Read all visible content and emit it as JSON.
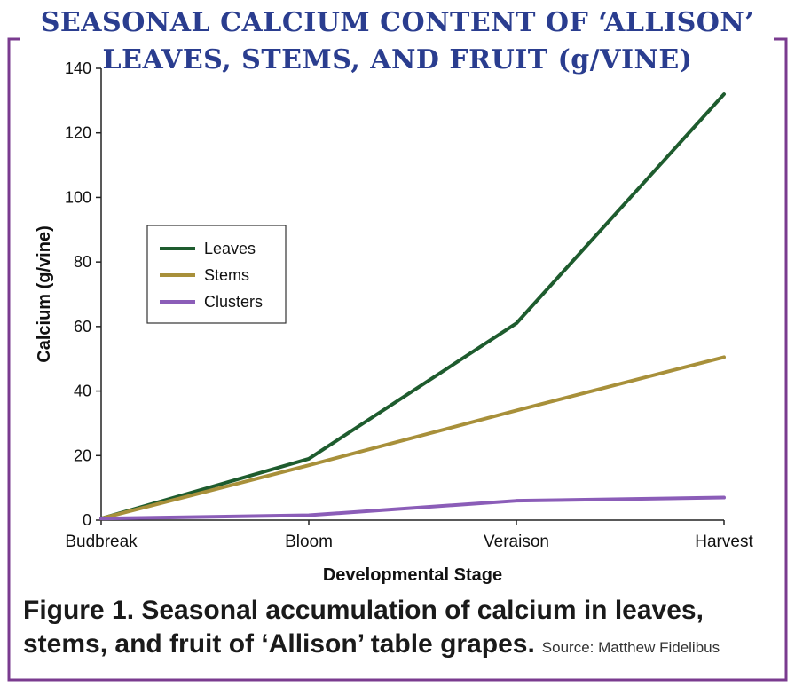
{
  "header": {
    "title_line_1": "SEASONAL CALCIUM CONTENT OF ‘ALLISON’",
    "title_line_2": "LEAVES, STEMS, AND FRUIT (g/VINE)"
  },
  "caption": {
    "text_line_1": "Figure 1. Seasonal accumulation of calcium in leaves,",
    "text_line_2": "stems, and fruit of ‘Allison’ table grapes.",
    "source": "Source: Matthew Fidelibus"
  },
  "colors": {
    "frame": "#7a3b8f",
    "title": "#2a3d8f"
  },
  "chart_data": {
    "type": "line",
    "categories": [
      "Budbreak",
      "Bloom",
      "Veraison",
      "Harvest"
    ],
    "xlabel": "Developmental Stage",
    "ylabel": "Calcium (g/vine)",
    "ylim": [
      0,
      140
    ],
    "yticks": [
      0,
      20,
      40,
      60,
      80,
      100,
      120,
      140
    ],
    "grid": false,
    "legend_position": "left-middle",
    "series": [
      {
        "name": "Leaves",
        "color": "#1e5c2e",
        "values": [
          0.5,
          19,
          61,
          132
        ]
      },
      {
        "name": "Stems",
        "color": "#a8903a",
        "values": [
          0.5,
          17,
          34,
          50.5
        ]
      },
      {
        "name": "Clusters",
        "color": "#8b5db8",
        "values": [
          0.5,
          1.5,
          6,
          7
        ]
      }
    ]
  }
}
